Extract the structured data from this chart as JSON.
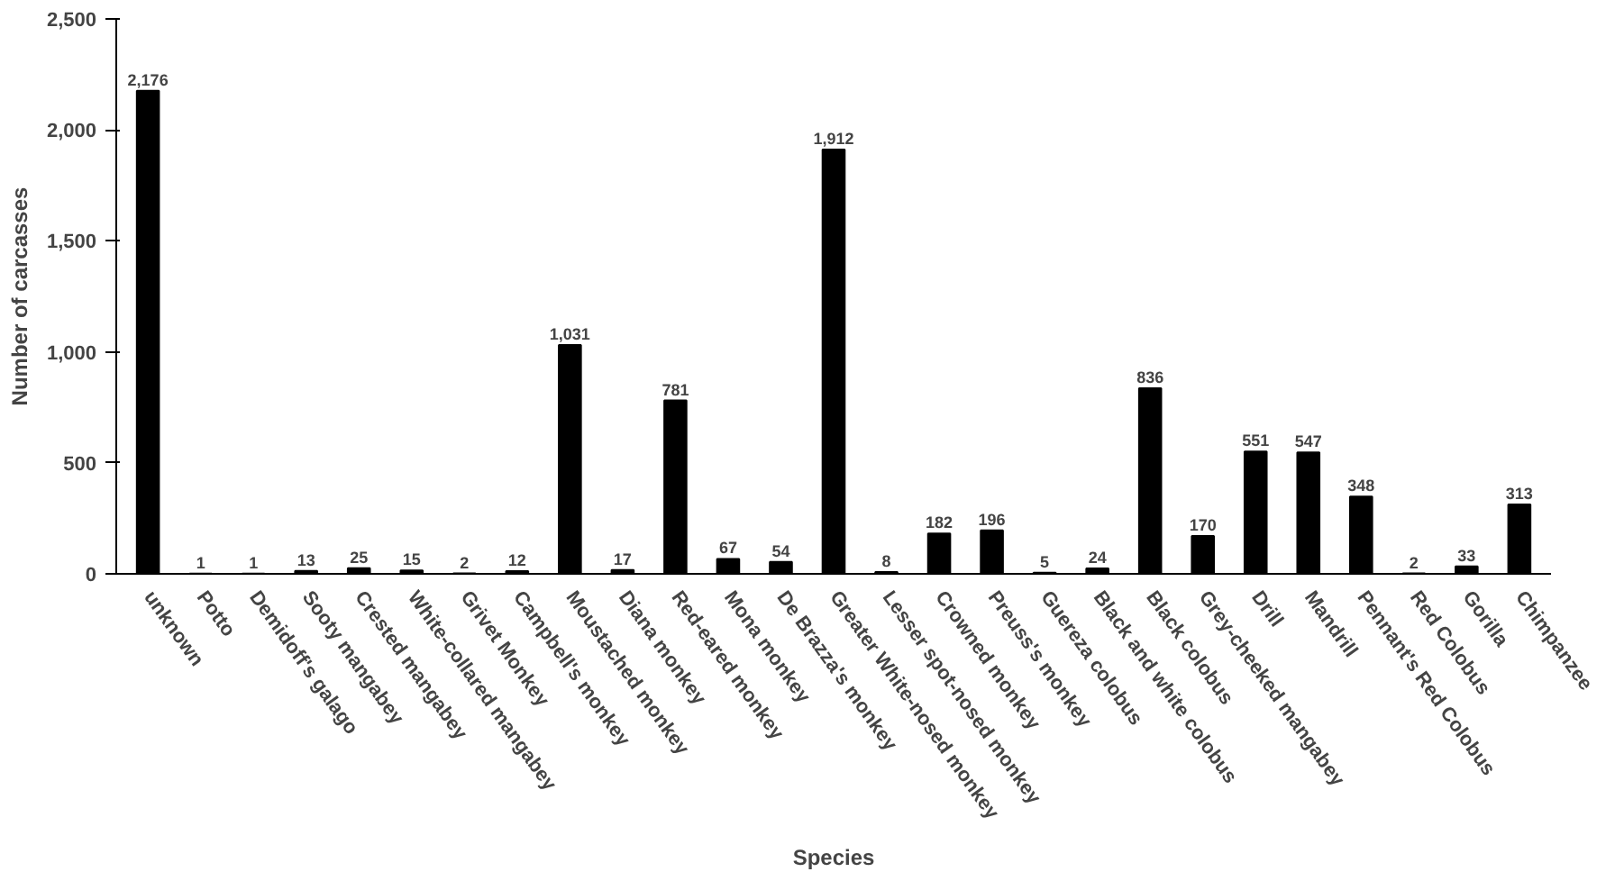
{
  "chart_data": {
    "type": "bar",
    "xlabel": "Species",
    "ylabel": "Number of carcasses",
    "categories": [
      "unknown",
      "Potto",
      "Demidoff's galago",
      "Sooty mangabey",
      "Crested mangabey",
      "White-collared mangabey",
      "Grivet Monkey",
      "Campbell's monkey",
      "Moustached monkey",
      "Diana monkey",
      "Red-eared monkey",
      "Mona monkey",
      "De Brazza's monkey",
      "Greater White-nosed monkey",
      "Lesser spot-nosed monkey",
      "Crowned monkey",
      "Preuss's monkey",
      "Guereza colobus",
      "Black and white colobus",
      "Black colobus",
      "Grey-cheeked mangabey",
      "Drill",
      "Mandrill",
      "Pennant's Red Colobus",
      "Red Colobus",
      "Gorilla",
      "Chimpanzee"
    ],
    "values": [
      2176,
      1,
      1,
      13,
      25,
      15,
      2,
      12,
      1031,
      17,
      781,
      67,
      54,
      1912,
      8,
      182,
      196,
      5,
      24,
      836,
      170,
      551,
      547,
      348,
      2,
      33,
      313
    ],
    "value_labels": [
      "2,176",
      "1",
      "1",
      "13",
      "25",
      "15",
      "2",
      "12",
      "1,031",
      "17",
      "781",
      "67",
      "54",
      "1,912",
      "8",
      "182",
      "196",
      "5",
      "24",
      "836",
      "170",
      "551",
      "547",
      "348",
      "2",
      "33",
      "313"
    ],
    "color": "#000000",
    "ylim": [
      0,
      2500
    ],
    "yticks": [
      0,
      500,
      {
        "value": 1000,
        "label": "1,000"
      },
      {
        "value": 1500,
        "label": "1,500"
      },
      {
        "value": 2000,
        "label": "2,000"
      },
      {
        "value": 2500,
        "label": "2,500"
      }
    ],
    "grid": false
  }
}
